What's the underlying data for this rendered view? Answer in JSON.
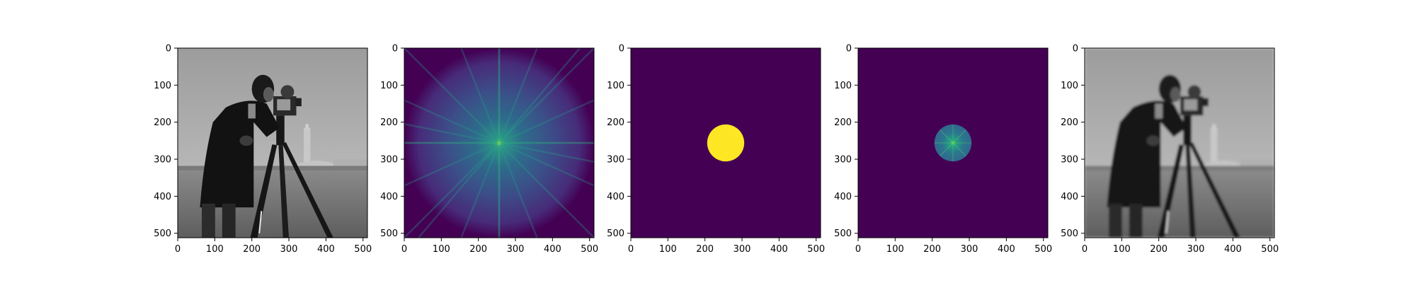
{
  "figure": {
    "background": "#ffffff",
    "panel_count": 5
  },
  "chart_data": [
    {
      "type": "heatmap",
      "content": "cameraman photograph (grayscale image)",
      "colormap": "gray",
      "xlim": [
        0,
        512
      ],
      "ylim": [
        512,
        0
      ],
      "xticks": [
        0,
        100,
        200,
        300,
        400,
        500
      ],
      "yticks": [
        0,
        100,
        200,
        300,
        400,
        500
      ]
    },
    {
      "type": "heatmap",
      "content": "log-magnitude Fourier spectrum, centered",
      "colormap": "viridis",
      "center": [
        256,
        256
      ],
      "xlim": [
        0,
        512
      ],
      "ylim": [
        512,
        0
      ],
      "xticks": [
        0,
        100,
        200,
        300,
        400,
        500
      ],
      "yticks": [
        0,
        100,
        200,
        300,
        400,
        500
      ]
    },
    {
      "type": "heatmap",
      "content": "circular low-pass mask",
      "colormap": "viridis",
      "center": [
        256,
        256
      ],
      "radius": 50,
      "xlim": [
        0,
        512
      ],
      "ylim": [
        512,
        0
      ],
      "xticks": [
        0,
        100,
        200,
        300,
        400,
        500
      ],
      "yticks": [
        0,
        100,
        200,
        300,
        400,
        500
      ]
    },
    {
      "type": "heatmap",
      "content": "masked spectrum",
      "colormap": "viridis",
      "center": [
        256,
        256
      ],
      "radius": 50,
      "xlim": [
        0,
        512
      ],
      "ylim": [
        512,
        0
      ],
      "xticks": [
        0,
        100,
        200,
        300,
        400,
        500
      ],
      "yticks": [
        0,
        100,
        200,
        300,
        400,
        500
      ]
    },
    {
      "type": "heatmap",
      "content": "low-pass filtered cameraman image (blurred)",
      "colormap": "gray",
      "xlim": [
        0,
        512
      ],
      "ylim": [
        512,
        0
      ],
      "xticks": [
        0,
        100,
        200,
        300,
        400,
        500
      ],
      "yticks": [
        0,
        100,
        200,
        300,
        400,
        500
      ]
    }
  ],
  "colors": {
    "viridis_dark": "#440154",
    "viridis_mid": "#3b528b",
    "viridis_teal": "#21918c",
    "viridis_green": "#5ec962",
    "viridis_yellow": "#fde725",
    "sky_gray": "#a9a9a9",
    "grass_gray": "#6e6e6e",
    "figure_black": "#141414"
  }
}
